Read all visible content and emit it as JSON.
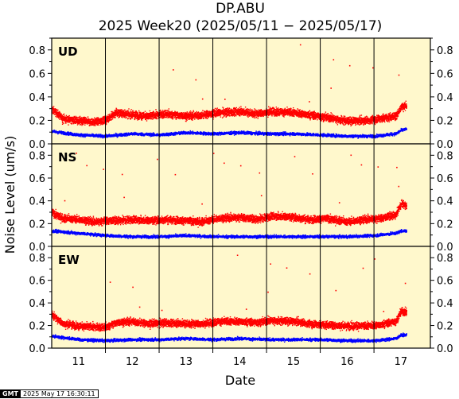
{
  "chart_data": {
    "type": "scatter",
    "title": "DP.ABU",
    "subtitle": "2025 Week20 (2025/05/11 − 2025/05/17)",
    "xlabel": "Date",
    "ylabel": "Noise Level (um/s)",
    "x_tick_labels": [
      "11",
      "12",
      "13",
      "14",
      "15",
      "16",
      "17"
    ],
    "x_range_days": [
      10.5,
      17.55
    ],
    "y_tick_labels": [
      "0.0",
      "0.2",
      "0.4",
      "0.6",
      "0.8"
    ],
    "ylim": [
      0.0,
      0.9
    ],
    "grid": "vertical lines at day boundaries",
    "background_color": "#fff8cc",
    "panels": [
      {
        "label": "UD",
        "series": [
          {
            "color": "#ff0000",
            "baseline": 0.25,
            "x_days": [
              10.5,
              10.7,
              11.0,
              11.3,
              11.5,
              11.7,
              12.0,
              12.3,
              12.6,
              13.0,
              13.3,
              13.6,
              14.0,
              14.3,
              14.6,
              15.0,
              15.3,
              15.6,
              16.0,
              16.3,
              16.6,
              16.9,
              17.0,
              17.1
            ],
            "values": [
              0.3,
              0.22,
              0.2,
              0.19,
              0.21,
              0.27,
              0.25,
              0.24,
              0.26,
              0.24,
              0.25,
              0.27,
              0.28,
              0.26,
              0.28,
              0.27,
              0.25,
              0.23,
              0.2,
              0.2,
              0.22,
              0.24,
              0.32,
              0.33
            ]
          },
          {
            "color": "#0000ff",
            "baseline": 0.09,
            "x_days": [
              10.5,
              11.0,
              11.5,
              12.0,
              12.5,
              13.0,
              13.5,
              14.0,
              14.5,
              15.0,
              15.5,
              16.0,
              16.5,
              16.9,
              17.0,
              17.1
            ],
            "values": [
              0.11,
              0.08,
              0.07,
              0.09,
              0.08,
              0.1,
              0.09,
              0.1,
              0.09,
              0.09,
              0.08,
              0.07,
              0.07,
              0.09,
              0.12,
              0.13
            ]
          }
        ]
      },
      {
        "label": "NS",
        "series": [
          {
            "color": "#ff0000",
            "baseline": 0.25,
            "x_days": [
              10.5,
              10.7,
              11.0,
              11.3,
              11.5,
              11.7,
              12.0,
              12.3,
              12.6,
              13.0,
              13.3,
              13.6,
              14.0,
              14.3,
              14.6,
              15.0,
              15.3,
              15.6,
              16.0,
              16.3,
              16.6,
              16.9,
              17.0,
              17.1
            ],
            "values": [
              0.3,
              0.25,
              0.24,
              0.22,
              0.23,
              0.23,
              0.24,
              0.23,
              0.24,
              0.23,
              0.22,
              0.25,
              0.26,
              0.24,
              0.27,
              0.26,
              0.24,
              0.25,
              0.22,
              0.24,
              0.25,
              0.28,
              0.38,
              0.36
            ]
          },
          {
            "color": "#0000ff",
            "baseline": 0.1,
            "x_days": [
              10.5,
              11.0,
              11.5,
              12.0,
              12.5,
              13.0,
              13.5,
              14.0,
              14.5,
              15.0,
              15.5,
              16.0,
              16.5,
              16.9,
              17.0,
              17.1
            ],
            "values": [
              0.14,
              0.12,
              0.1,
              0.09,
              0.09,
              0.1,
              0.09,
              0.09,
              0.09,
              0.09,
              0.09,
              0.09,
              0.1,
              0.12,
              0.14,
              0.14
            ]
          }
        ]
      },
      {
        "label": "EW",
        "series": [
          {
            "color": "#ff0000",
            "baseline": 0.22,
            "x_days": [
              10.5,
              10.7,
              11.0,
              11.3,
              11.5,
              11.7,
              12.0,
              12.3,
              12.6,
              13.0,
              13.3,
              13.6,
              14.0,
              14.3,
              14.6,
              15.0,
              15.3,
              15.6,
              16.0,
              16.3,
              16.6,
              16.9,
              17.0,
              17.1
            ],
            "values": [
              0.3,
              0.22,
              0.2,
              0.19,
              0.19,
              0.23,
              0.24,
              0.22,
              0.23,
              0.22,
              0.22,
              0.24,
              0.24,
              0.23,
              0.25,
              0.24,
              0.22,
              0.21,
              0.2,
              0.2,
              0.21,
              0.24,
              0.33,
              0.32
            ]
          },
          {
            "color": "#0000ff",
            "baseline": 0.08,
            "x_days": [
              10.5,
              11.0,
              11.5,
              12.0,
              12.5,
              13.0,
              13.5,
              14.0,
              14.5,
              15.0,
              15.5,
              16.0,
              16.5,
              16.9,
              17.0,
              17.1
            ],
            "values": [
              0.11,
              0.08,
              0.07,
              0.08,
              0.08,
              0.09,
              0.08,
              0.09,
              0.08,
              0.08,
              0.08,
              0.07,
              0.07,
              0.09,
              0.12,
              0.12
            ]
          }
        ]
      }
    ]
  },
  "stamp": {
    "logo": "GMT",
    "text": "2025 May 17 16:30:11"
  }
}
